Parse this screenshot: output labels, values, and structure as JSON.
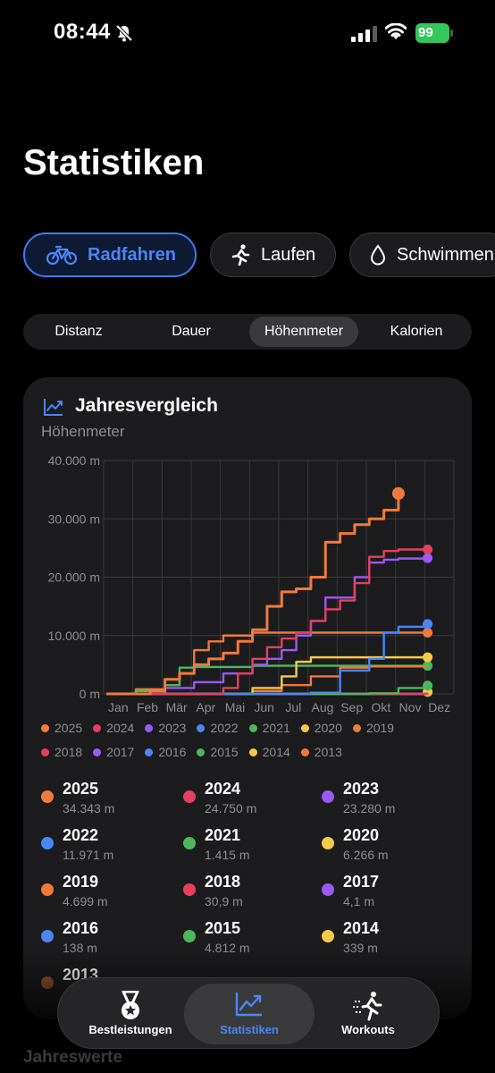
{
  "status_bar": {
    "time": "08:44",
    "battery": "99"
  },
  "page": {
    "title": "Statistiken",
    "footer_section": "Jahreswerte"
  },
  "sport_chips": [
    {
      "label": "Radfahren",
      "icon": "bicycle-icon",
      "active": true
    },
    {
      "label": "Laufen",
      "icon": "running-person-icon",
      "active": false
    },
    {
      "label": "Schwimmen",
      "icon": "water-drop-icon",
      "active": false
    }
  ],
  "metric_tabs": [
    {
      "label": "Distanz",
      "active": false
    },
    {
      "label": "Dauer",
      "active": false
    },
    {
      "label": "Höhenmeter",
      "active": true
    },
    {
      "label": "Kalorien",
      "active": false
    }
  ],
  "card": {
    "title": "Jahresvergleich",
    "subtitle": "Höhenmeter",
    "icon": "line-chart-icon"
  },
  "chart_data": {
    "type": "line",
    "y_ticks": [
      "40.000 m",
      "30.000 m",
      "20.000 m",
      "10.000 m",
      "0 m"
    ],
    "ylim": [
      0,
      40000
    ],
    "x_categories": [
      "Jan",
      "Feb",
      "Mär",
      "Apr",
      "Mai",
      "Jun",
      "Jul",
      "Aug",
      "Sep",
      "Okt",
      "Nov",
      "Dez"
    ],
    "grid": true,
    "legend": "bottom",
    "series": [
      {
        "name": "2025",
        "color": "#f5793a",
        "x": [
          0,
          1,
          1.5,
          2,
          2.5,
          3,
          3.5,
          4,
          4.5,
          5,
          5.5,
          6,
          6.5,
          7,
          7.5,
          8,
          8.5,
          9,
          9.5,
          10
        ],
        "y": [
          0,
          0,
          500,
          2500,
          3500,
          5000,
          6000,
          7000,
          9000,
          11000,
          15000,
          17500,
          18000,
          20000,
          26000,
          27500,
          29000,
          30000,
          31500,
          34343
        ],
        "end_marker": true
      },
      {
        "name": "2024",
        "color": "#e5405e",
        "x": [
          0,
          3,
          4,
          4.5,
          5,
          5.5,
          6,
          6.5,
          7,
          7.5,
          8,
          8.5,
          9,
          9.5,
          10,
          11
        ],
        "y": [
          0,
          0,
          1000,
          3500,
          6000,
          8000,
          9500,
          10500,
          12500,
          14500,
          16000,
          19000,
          23500,
          24500,
          24750,
          24750
        ],
        "end_marker": true
      },
      {
        "name": "2023",
        "color": "#9b59f5",
        "x": [
          0,
          2,
          3,
          4,
          5,
          5.5,
          6,
          6.5,
          7,
          7.5,
          8,
          8.5,
          9,
          9.5,
          10,
          11
        ],
        "y": [
          0,
          1000,
          2000,
          3500,
          5000,
          6000,
          7500,
          10000,
          12500,
          16500,
          16500,
          20000,
          22500,
          23000,
          23200,
          23280
        ],
        "end_marker": true
      },
      {
        "name": "2022",
        "color": "#4a86f7",
        "x": [
          0,
          7,
          8,
          9,
          9.5,
          10,
          11
        ],
        "y": [
          0,
          200,
          4000,
          6000,
          10500,
          11500,
          11971
        ],
        "end_marker": true
      },
      {
        "name": "2021",
        "color": "#4cb85c",
        "x": [
          0,
          9,
          10,
          11
        ],
        "y": [
          0,
          100,
          1000,
          1415
        ],
        "end_marker": true
      },
      {
        "name": "2020",
        "color": "#f7c948",
        "x": [
          0,
          5,
          6,
          6.5,
          7,
          8,
          11
        ],
        "y": [
          0,
          1000,
          3000,
          5500,
          6266,
          6266,
          6266
        ],
        "end_marker": true
      },
      {
        "name": "2019",
        "color": "#f07a3a",
        "x": [
          0,
          5,
          6,
          7,
          8,
          9,
          11
        ],
        "y": [
          0,
          500,
          1500,
          3000,
          4500,
          4699,
          4699
        ],
        "end_marker": false
      },
      {
        "name": "2018",
        "color": "#e5405e",
        "x": [
          0,
          11
        ],
        "y": [
          0,
          30.9
        ],
        "end_marker": false
      },
      {
        "name": "2017",
        "color": "#9b59f5",
        "x": [
          0,
          11
        ],
        "y": [
          0,
          4.1
        ],
        "end_marker": false
      },
      {
        "name": "2016",
        "color": "#4a86f7",
        "x": [
          0,
          11
        ],
        "y": [
          0,
          138
        ],
        "end_marker": false
      },
      {
        "name": "2015",
        "color": "#4cb85c",
        "x": [
          0,
          1,
          2,
          2.5,
          3,
          5,
          11
        ],
        "y": [
          0,
          500,
          1500,
          4500,
          4600,
          4812,
          4812
        ],
        "end_marker": true
      },
      {
        "name": "2014",
        "color": "#f7c948",
        "x": [
          0,
          11
        ],
        "y": [
          0,
          339
        ],
        "end_marker": true
      },
      {
        "name": "2013",
        "color": "#f07a3a",
        "x": [
          0,
          1,
          2,
          2.5,
          3,
          3.5,
          4,
          5,
          11
        ],
        "y": [
          0,
          800,
          1500,
          3500,
          7500,
          9000,
          10000,
          10500,
          10500
        ],
        "end_marker": true
      }
    ]
  },
  "legend": [
    [
      {
        "label": "2025",
        "color": "#f5793a"
      },
      {
        "label": "2024",
        "color": "#e5405e"
      },
      {
        "label": "2023",
        "color": "#9b59f5"
      },
      {
        "label": "2022",
        "color": "#4a86f7"
      },
      {
        "label": "2021",
        "color": "#4cb85c"
      },
      {
        "label": "2020",
        "color": "#f7c948"
      },
      {
        "label": "2019",
        "color": "#f07a3a"
      }
    ],
    [
      {
        "label": "2018",
        "color": "#e5405e"
      },
      {
        "label": "2017",
        "color": "#9b59f5"
      },
      {
        "label": "2016",
        "color": "#4a86f7"
      },
      {
        "label": "2015",
        "color": "#4cb85c"
      },
      {
        "label": "2014",
        "color": "#f7c948"
      },
      {
        "label": "2013",
        "color": "#f07a3a"
      }
    ]
  ],
  "totals": [
    {
      "year": "2025",
      "value": "34.343 m",
      "color": "#f5793a"
    },
    {
      "year": "2024",
      "value": "24.750 m",
      "color": "#e5405e"
    },
    {
      "year": "2023",
      "value": "23.280 m",
      "color": "#9b59f5"
    },
    {
      "year": "2022",
      "value": "11.971 m",
      "color": "#4a86f7"
    },
    {
      "year": "2021",
      "value": "1.415 m",
      "color": "#4cb85c"
    },
    {
      "year": "2020",
      "value": "6.266 m",
      "color": "#f7c948"
    },
    {
      "year": "2019",
      "value": "4.699 m",
      "color": "#f07a3a"
    },
    {
      "year": "2018",
      "value": "30,9 m",
      "color": "#e5405e"
    },
    {
      "year": "2017",
      "value": "4,1 m",
      "color": "#9b59f5"
    },
    {
      "year": "2016",
      "value": "138 m",
      "color": "#4a86f7"
    },
    {
      "year": "2015",
      "value": "4.812 m",
      "color": "#4cb85c"
    },
    {
      "year": "2014",
      "value": "339 m",
      "color": "#f7c948"
    },
    {
      "year": "2013",
      "value": "",
      "color": "#a0522d"
    }
  ],
  "tab_bar": [
    {
      "label": "Bestleistungen",
      "icon": "medal-icon",
      "active": false
    },
    {
      "label": "Statistiken",
      "icon": "trend-chart-icon",
      "active": true
    },
    {
      "label": "Workouts",
      "icon": "running-figure-icon",
      "active": false
    }
  ]
}
